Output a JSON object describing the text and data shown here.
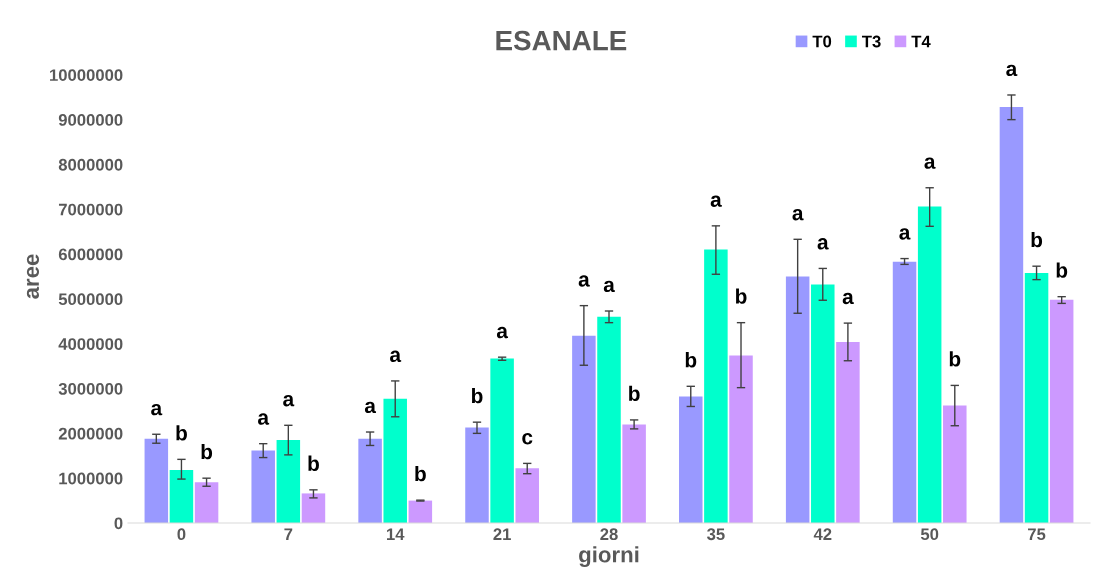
{
  "chart_data": {
    "type": "bar",
    "title": "ESANALE",
    "xlabel": "giorni",
    "ylabel": "aree",
    "categories": [
      "0",
      "7",
      "14",
      "21",
      "28",
      "35",
      "42",
      "50",
      "75"
    ],
    "series": [
      {
        "name": "T0",
        "color": "#9999ff",
        "values": [
          1880000,
          1620000,
          1880000,
          2130000,
          4180000,
          2820000,
          5500000,
          5830000,
          9280000
        ],
        "errors": [
          [
            1780000,
            1980000
          ],
          [
            1460000,
            1770000
          ],
          [
            1730000,
            2030000
          ],
          [
            2000000,
            2250000
          ],
          [
            3520000,
            4850000
          ],
          [
            2600000,
            3050000
          ],
          [
            4680000,
            6330000
          ],
          [
            5770000,
            5900000
          ],
          [
            9000000,
            9550000
          ]
        ],
        "value_labels": [
          "a",
          "a",
          "a",
          "b",
          "a",
          "b",
          "a",
          "a",
          "a"
        ]
      },
      {
        "name": "T3",
        "color": "#00ffcc",
        "values": [
          1180000,
          1850000,
          2770000,
          3670000,
          4600000,
          6100000,
          5320000,
          7060000,
          5580000
        ],
        "errors": [
          [
            980000,
            1420000
          ],
          [
            1520000,
            2180000
          ],
          [
            2370000,
            3170000
          ],
          [
            3630000,
            3700000
          ],
          [
            4470000,
            4730000
          ],
          [
            5550000,
            6630000
          ],
          [
            4970000,
            5680000
          ],
          [
            6620000,
            7480000
          ],
          [
            5430000,
            5730000
          ]
        ],
        "value_labels": [
          "b",
          "a",
          "a",
          "a",
          "a",
          "a",
          "a",
          "a",
          "b"
        ]
      },
      {
        "name": "T4",
        "color": "#cc99ff",
        "values": [
          910000,
          660000,
          500000,
          1220000,
          2200000,
          3740000,
          4040000,
          2620000,
          4980000
        ],
        "errors": [
          [
            820000,
            1000000
          ],
          [
            560000,
            740000
          ],
          [
            490000,
            510000
          ],
          [
            1100000,
            1330000
          ],
          [
            2100000,
            2300000
          ],
          [
            3020000,
            4470000
          ],
          [
            3620000,
            4460000
          ],
          [
            2170000,
            3070000
          ],
          [
            4900000,
            5050000
          ]
        ],
        "value_labels": [
          "b",
          "b",
          "b",
          "c",
          "b",
          "b",
          "a",
          "b",
          "b"
        ]
      }
    ],
    "ylim": [
      0,
      11000000
    ],
    "yticks": [
      0,
      1000000,
      2000000,
      3000000,
      4000000,
      5000000,
      6000000,
      7000000,
      8000000,
      9000000,
      10000000
    ],
    "grid": false,
    "legend": "top right"
  }
}
